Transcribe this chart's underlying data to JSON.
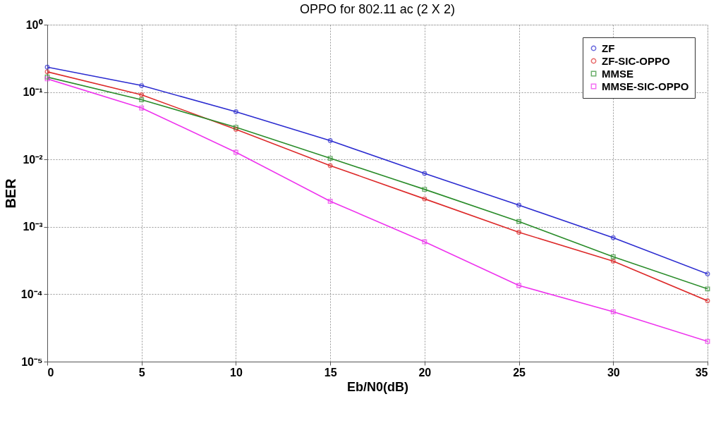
{
  "chart_data": {
    "type": "line",
    "title": "OPPO for 802.11 ac (2 X 2)",
    "xlabel": "Eb/N0(dB)",
    "ylabel": "BER",
    "x": [
      0,
      5,
      10,
      15,
      20,
      25,
      30,
      35
    ],
    "series": [
      {
        "name": "ZF",
        "color": "#2b2bd0",
        "marker": "circle",
        "values": [
          0.234,
          0.125,
          0.051,
          0.019,
          0.0062,
          0.0021,
          0.00069,
          0.0002
        ]
      },
      {
        "name": "ZF-SIC-OPPO",
        "color": "#dd2a2a",
        "marker": "circle",
        "values": [
          0.2,
          0.091,
          0.028,
          0.0081,
          0.0026,
          0.00083,
          0.00031,
          8e-05
        ]
      },
      {
        "name": "MMSE",
        "color": "#2a8c2a",
        "marker": "square",
        "values": [
          0.167,
          0.077,
          0.03,
          0.0104,
          0.0036,
          0.0012,
          0.00036,
          0.00012
        ]
      },
      {
        "name": "MMSE-SIC-OPPO",
        "color": "#ee33ee",
        "marker": "square",
        "values": [
          0.157,
          0.058,
          0.0128,
          0.0024,
          0.0006,
          0.000135,
          5.5e-05,
          2e-05
        ]
      }
    ],
    "log": "y",
    "xlim": [
      0,
      35
    ],
    "xticks": [
      0,
      5,
      10,
      15,
      20,
      25,
      30,
      35
    ],
    "ylim": [
      1e-05,
      1
    ],
    "yticks": [
      {
        "value": 1e-05,
        "label": "10⁻⁵"
      },
      {
        "value": 0.0001,
        "label": "10⁻⁴"
      },
      {
        "value": 0.001,
        "label": "10⁻³"
      },
      {
        "value": 0.01,
        "label": "10⁻²"
      },
      {
        "value": 0.1,
        "label": "10⁻¹"
      },
      {
        "value": 1,
        "label": "10⁰"
      }
    ],
    "grid": true,
    "legend": "top right",
    "line_style": "solid"
  }
}
